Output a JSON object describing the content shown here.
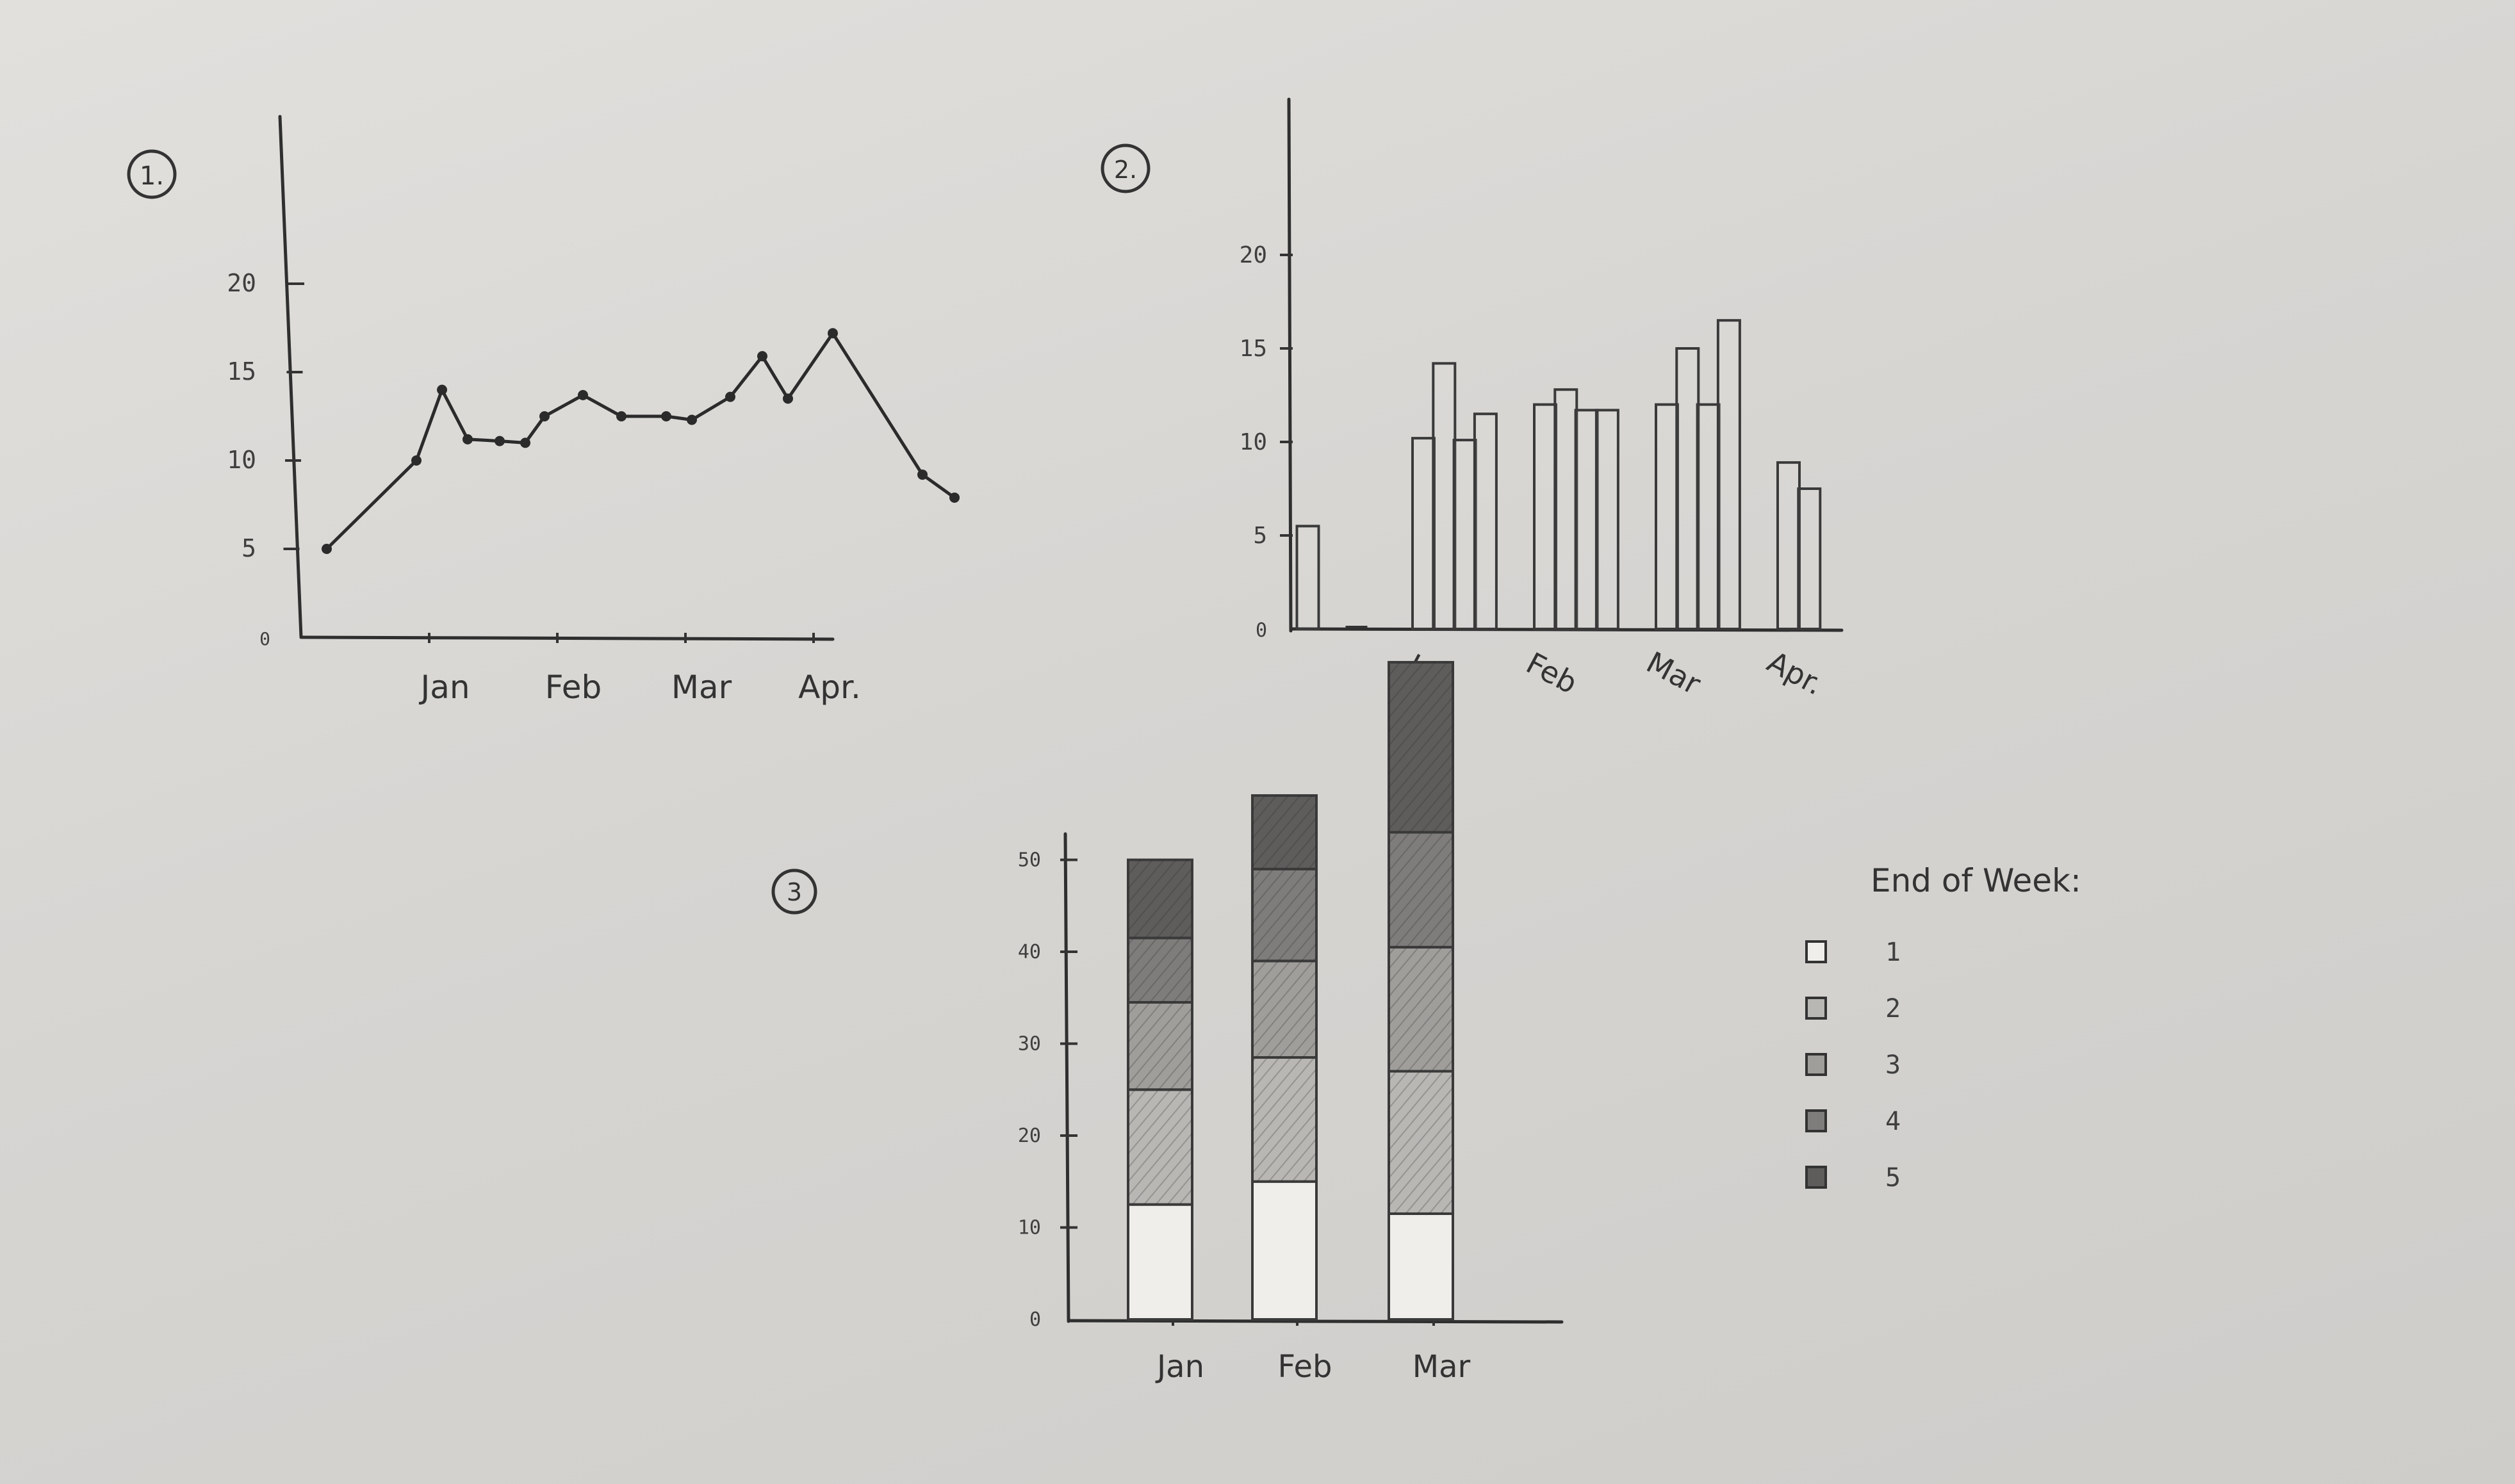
{
  "chart_data": [
    {
      "type": "line",
      "panel_marker": "1.",
      "categories": [
        "Jan",
        "Feb",
        "Mar",
        "Apr."
      ],
      "y_ticks": [
        "0",
        "5",
        "10",
        "15",
        "20"
      ],
      "ylim": [
        0,
        25
      ],
      "grid": false,
      "series": [
        {
          "points": [
            [
              0.2,
              5
            ],
            [
              0.9,
              10
            ],
            [
              1.1,
              14
            ],
            [
              1.3,
              11.2
            ],
            [
              1.55,
              11.1
            ],
            [
              1.75,
              11
            ],
            [
              1.9,
              12.5
            ],
            [
              2.2,
              13.7
            ],
            [
              2.5,
              12.5
            ],
            [
              2.85,
              12.5
            ],
            [
              3.05,
              12.3
            ],
            [
              3.35,
              13.6
            ],
            [
              3.6,
              15.9
            ],
            [
              3.8,
              13.5
            ],
            [
              4.15,
              17.2
            ],
            [
              4.85,
              9.2
            ],
            [
              5.1,
              7.9
            ]
          ]
        }
      ],
      "x_tick_positions": [
        1,
        2,
        3,
        4
      ]
    },
    {
      "type": "bar",
      "panel_marker": "2.",
      "categories": [
        "Jan",
        "Feb",
        "Mar",
        "Apr."
      ],
      "y_ticks": [
        "0",
        "5",
        "10",
        "15",
        "20"
      ],
      "ylim": [
        0,
        25
      ],
      "grid": false,
      "bars": [
        {
          "x": 0.05,
          "value": 5.5
        },
        {
          "x": 0.45,
          "value": 0
        },
        {
          "x": 1.0,
          "value": 10.2
        },
        {
          "x": 1.17,
          "value": 14.2
        },
        {
          "x": 1.34,
          "value": 10.1
        },
        {
          "x": 1.51,
          "value": 11.5
        },
        {
          "x": 2.0,
          "value": 12
        },
        {
          "x": 2.17,
          "value": 12.8
        },
        {
          "x": 2.34,
          "value": 11.7
        },
        {
          "x": 2.51,
          "value": 11.7
        },
        {
          "x": 3.0,
          "value": 12
        },
        {
          "x": 3.17,
          "value": 15
        },
        {
          "x": 3.34,
          "value": 12
        },
        {
          "x": 3.51,
          "value": 16.5
        },
        {
          "x": 4.0,
          "value": 8.9
        },
        {
          "x": 4.17,
          "value": 7.5
        }
      ]
    },
    {
      "type": "bar",
      "subtype": "stacked",
      "panel_marker": "3",
      "categories": [
        "Jan",
        "Feb",
        "Mar"
      ],
      "y_ticks": [
        "0",
        "10",
        "20",
        "30",
        "40",
        "50"
      ],
      "ylim": [
        0,
        56
      ],
      "grid": false,
      "legend": {
        "title": "End of Week:",
        "position": "right",
        "entries": [
          "1",
          "2",
          "3",
          "4",
          "5"
        ]
      },
      "series": [
        {
          "name": "1",
          "values": [
            12.5,
            15,
            11.5
          ],
          "color": "#efeeeb"
        },
        {
          "name": "2",
          "values": [
            12.5,
            13.5,
            15.5
          ],
          "color": "#b9b7b4"
        },
        {
          "name": "3",
          "values": [
            9.5,
            10.5,
            13.5
          ],
          "color": "#a09e9b"
        },
        {
          "name": "4",
          "values": [
            7,
            10,
            12.5
          ],
          "color": "#7f7d7b"
        },
        {
          "name": "5",
          "values": [
            8.5,
            8,
            18.5
          ],
          "color": "#5f5d5b"
        }
      ]
    }
  ]
}
